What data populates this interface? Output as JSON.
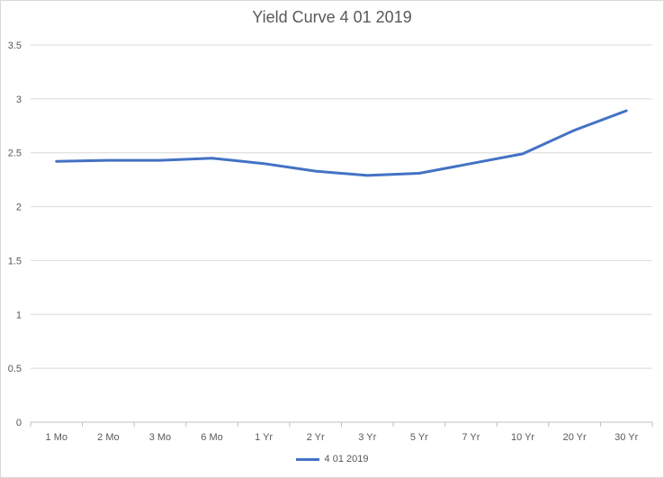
{
  "chart_data": {
    "type": "line",
    "title": "Yield Curve 4 01 2019",
    "xlabel": "",
    "ylabel": "",
    "categories": [
      "1 Mo",
      "2 Mo",
      "3 Mo",
      "6 Mo",
      "1 Yr",
      "2 Yr",
      "3 Yr",
      "5 Yr",
      "7 Yr",
      "10 Yr",
      "20 Yr",
      "30 Yr"
    ],
    "series": [
      {
        "name": "4 01 2019",
        "color": "#4472c4",
        "values": [
          2.42,
          2.43,
          2.43,
          2.45,
          2.4,
          2.33,
          2.29,
          2.31,
          2.4,
          2.49,
          2.71,
          2.89
        ]
      }
    ],
    "ylim": [
      0,
      3.5
    ],
    "yticks": [
      "0",
      "0.5",
      "1",
      "1.5",
      "2",
      "2.5",
      "3",
      "3.5"
    ],
    "grid": true,
    "legend": "bottom"
  }
}
